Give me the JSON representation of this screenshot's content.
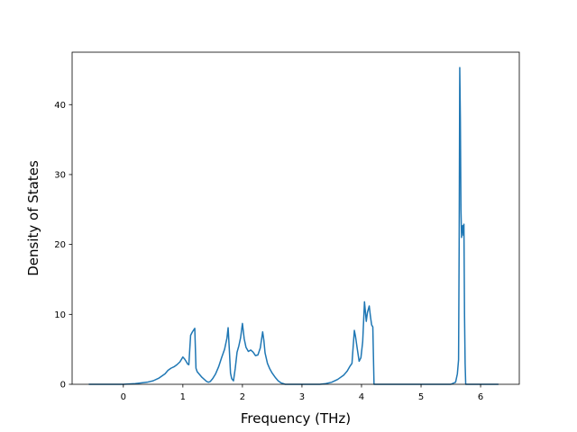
{
  "chart_data": {
    "type": "line",
    "title": "",
    "xlabel": "Frequency (THz)",
    "ylabel": "Density of States",
    "xlim": [
      -0.86,
      6.65
    ],
    "ylim": [
      0,
      47.5
    ],
    "xticks": [
      0,
      1,
      2,
      3,
      4,
      5,
      6
    ],
    "yticks": [
      0,
      10,
      20,
      30,
      40
    ],
    "grid": false,
    "legend": "none",
    "series": [
      {
        "color": "#1f77b4",
        "x": [
          -0.58,
          -0.3,
          0.0,
          0.2,
          0.4,
          0.5,
          0.6,
          0.7,
          0.75,
          0.8,
          0.85,
          0.9,
          0.95,
          1.0,
          1.03,
          1.06,
          1.08,
          1.1,
          1.13,
          1.16,
          1.2,
          1.22,
          1.24,
          1.28,
          1.32,
          1.36,
          1.4,
          1.43,
          1.46,
          1.5,
          1.55,
          1.6,
          1.65,
          1.7,
          1.74,
          1.76,
          1.78,
          1.8,
          1.82,
          1.85,
          1.88,
          1.91,
          1.94,
          1.97,
          2.0,
          2.03,
          2.06,
          2.1,
          2.14,
          2.18,
          2.22,
          2.26,
          2.3,
          2.34,
          2.36,
          2.38,
          2.42,
          2.46,
          2.5,
          2.55,
          2.6,
          2.65,
          2.72,
          3.0,
          3.3,
          3.4,
          3.5,
          3.6,
          3.7,
          3.76,
          3.8,
          3.84,
          3.86,
          3.88,
          3.9,
          3.93,
          3.96,
          3.99,
          4.02,
          4.05,
          4.08,
          4.1,
          4.13,
          4.15,
          4.17,
          4.19,
          4.21,
          4.24,
          4.6,
          5.0,
          5.3,
          5.5,
          5.58,
          5.61,
          5.63,
          5.64,
          5.65,
          5.66,
          5.67,
          5.68,
          5.69,
          5.7,
          5.71,
          5.72,
          5.73,
          5.74,
          5.75,
          6.0,
          6.2,
          6.3
        ],
        "y": [
          0,
          0,
          0,
          0.1,
          0.3,
          0.5,
          0.9,
          1.5,
          2.0,
          2.3,
          2.5,
          2.8,
          3.2,
          3.9,
          3.6,
          3.2,
          2.9,
          2.8,
          7.0,
          7.5,
          8.0,
          2.3,
          1.8,
          1.4,
          1.0,
          0.7,
          0.4,
          0.3,
          0.4,
          0.8,
          1.5,
          2.5,
          3.8,
          5.0,
          6.6,
          8.1,
          5.0,
          1.6,
          0.8,
          0.5,
          2.3,
          4.6,
          5.5,
          6.7,
          8.7,
          6.5,
          5.3,
          4.7,
          4.9,
          4.6,
          4.1,
          4.2,
          5.2,
          7.5,
          6.3,
          4.5,
          3.0,
          2.2,
          1.6,
          1.0,
          0.5,
          0.2,
          0,
          0,
          0,
          0.1,
          0.3,
          0.7,
          1.3,
          1.9,
          2.5,
          3.0,
          5.4,
          7.7,
          6.8,
          5.0,
          3.3,
          3.8,
          6.1,
          11.8,
          9.0,
          10.3,
          11.2,
          9.7,
          8.5,
          8.2,
          0,
          0,
          0,
          0,
          0,
          0,
          0.3,
          1.5,
          3.5,
          20.0,
          45.3,
          38.0,
          25.0,
          21.0,
          22.5,
          22.7,
          21.3,
          22.9,
          10.0,
          3.0,
          0,
          0,
          0,
          0
        ]
      }
    ]
  }
}
